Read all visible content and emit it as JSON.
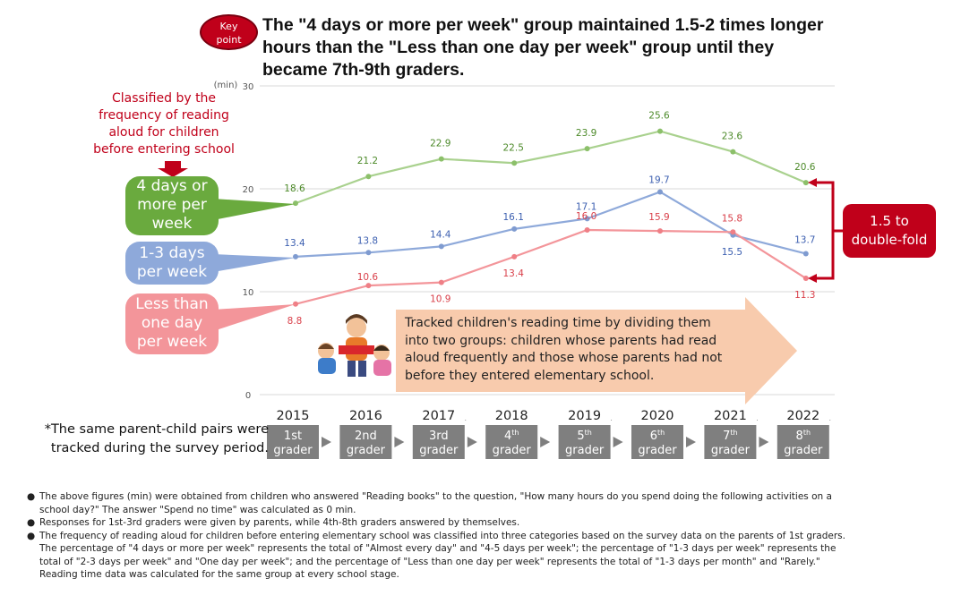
{
  "header": {
    "badge_line1": "Key",
    "badge_line2": "point",
    "headline_lines": [
      "The \"4 days or more per week\" group maintained 1.5-2 times longer",
      "hours than the \"Less than one day per week\" group until they",
      "became 7th-9th graders."
    ]
  },
  "annotations": {
    "classified_lines": [
      "Classified by the",
      "frequency of reading",
      "aloud for children",
      "before entering school"
    ],
    "green_bubble_lines": [
      "4 days or",
      "more per",
      "week"
    ],
    "blue_bubble_lines": [
      "1-3 days",
      "per week"
    ],
    "pink_bubble_lines": [
      "Less than",
      "one day",
      "per week"
    ],
    "fold_lines": [
      "1.5 to",
      "double-fold"
    ],
    "tracked_lines": [
      "*The same parent-child pairs were",
      "tracked during the survey period."
    ],
    "arrow_text_lines": [
      "Tracked children's reading time by dividing them",
      "into two groups: children whose parents had read",
      "aloud frequently and those whose parents had not",
      "before they entered elementary school."
    ]
  },
  "colors": {
    "green": "#6aaa3e",
    "green_line": "#a9d18e",
    "blue": "#8ea9da",
    "pink": "#f3959a",
    "red": "#c0001a",
    "grade_box": "#7f7f7f",
    "arrow_fill": "#f8cbad"
  },
  "chart_data": {
    "type": "line",
    "ylabel": "(min)",
    "ylim": [
      0,
      30
    ],
    "yticks": [
      0,
      10,
      20,
      30
    ],
    "grid": true,
    "x": [
      "2015",
      "2016",
      "2017",
      "2018",
      "2019",
      "2020",
      "2021",
      "2022"
    ],
    "x_suffix": [
      ".",
      ".",
      ".",
      "."
    ],
    "grades": [
      {
        "label": "1st",
        "sup": "",
        "word": "grader"
      },
      {
        "label": "2nd",
        "sup": "",
        "word": "grader"
      },
      {
        "label": "3rd",
        "sup": "",
        "word": "grader"
      },
      {
        "label": "4",
        "sup": "th",
        "word": "grader"
      },
      {
        "label": "5",
        "sup": "th",
        "word": "grader"
      },
      {
        "label": "6",
        "sup": "th",
        "word": "grader"
      },
      {
        "label": "7",
        "sup": "th",
        "word": "grader"
      },
      {
        "label": "8",
        "sup": "th",
        "word": "grader"
      }
    ],
    "series": [
      {
        "key": "green",
        "values": [
          18.6,
          21.2,
          22.9,
          22.5,
          23.9,
          25.6,
          23.6,
          20.6
        ],
        "labels": [
          "18.6",
          "21.2",
          "22.9",
          "22.5",
          "23.9",
          "25.6",
          "23.6",
          "20.6"
        ]
      },
      {
        "key": "blue",
        "values": [
          13.4,
          13.8,
          14.4,
          16.1,
          17.1,
          19.7,
          15.5,
          13.7
        ],
        "labels": [
          "13.4",
          "13.8",
          "14.4",
          "16.1",
          "17.1",
          "19.7",
          "15.5",
          "13.7"
        ]
      },
      {
        "key": "pink",
        "values": [
          8.8,
          10.6,
          10.9,
          13.4,
          16.0,
          15.9,
          15.8,
          11.3
        ],
        "labels": [
          "8.8",
          "10.6",
          "10.9",
          "13.4",
          "16.0",
          "15.9",
          "15.8",
          "11.3"
        ]
      }
    ]
  },
  "footnotes": [
    {
      "lines": [
        "The above figures (min) were obtained from children who answered \"Reading books\" to the question, \"How many hours do you spend doing the following activities on a",
        "school day?\" The answer \"Spend no time\" was calculated as 0 min."
      ]
    },
    {
      "lines": [
        "Responses for 1st-3rd graders were given by parents, while 4th-8th graders answered by themselves."
      ]
    },
    {
      "lines": [
        "The frequency of reading aloud for children before entering elementary school was classified into three categories based on the survey data on the parents of 1st graders.",
        "The percentage of \"4 days or more per week\" represents the total of \"Almost every day\" and \"4-5 days per week\"; the percentage of \"1-3 days per week\" represents the",
        "total of \"2-3 days per week\" and \"One day per week\"; and the percentage of \"Less than one day per week\" represents the total of \"1-3 days per month\" and \"Rarely.\"",
        "Reading time data was calculated for the same group at every school stage."
      ]
    }
  ],
  "footnote_bullet": "●"
}
